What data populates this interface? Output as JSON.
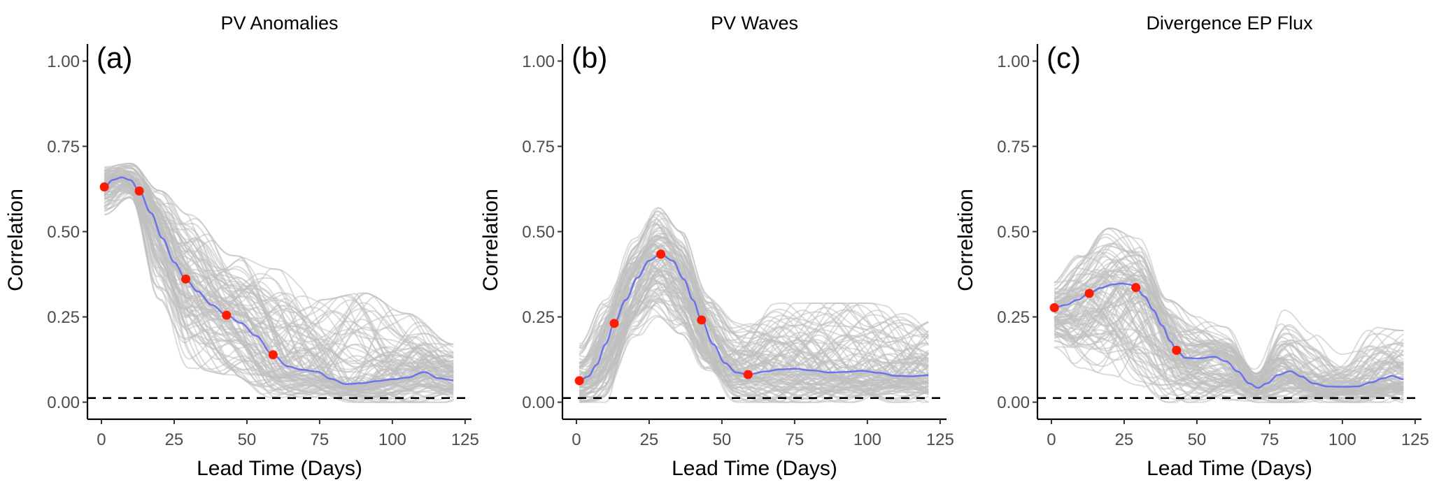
{
  "chart_data": [
    {
      "type": "line",
      "panel_label": "(a)",
      "title": "PV Anomalies",
      "xlabel": "Lead Time (Days)",
      "ylabel": "Correlation",
      "xlim": [
        -4.8,
        127.2
      ],
      "ylim": [
        -0.05,
        1.05
      ],
      "xticks": [
        0,
        25,
        50,
        75,
        100,
        125
      ],
      "xtick_labels": [
        "0",
        "25",
        "50",
        "75",
        "100",
        "125"
      ],
      "yticks": [
        0.0,
        0.25,
        0.5,
        0.75,
        1.0
      ],
      "ytick_labels": [
        "0.00",
        "0.25",
        "0.50",
        "0.75",
        "1.00"
      ],
      "grid": false,
      "reference_line": {
        "y": 0.012,
        "style": "dashed",
        "color": "#000000"
      },
      "ensemble": {
        "description": "individual member correlation curves (gray)",
        "count": 100,
        "color": "#bfbfbf",
        "spread_upper": {
          "x": [
            1,
            10,
            20,
            30,
            45,
            60,
            75,
            90,
            105,
            121
          ],
          "y": [
            0.69,
            0.7,
            0.62,
            0.55,
            0.43,
            0.39,
            0.3,
            0.32,
            0.26,
            0.17
          ]
        },
        "spread_lower": {
          "x": [
            1,
            10,
            20,
            30,
            45,
            60,
            75,
            90,
            105,
            121
          ],
          "y": [
            0.55,
            0.6,
            0.3,
            0.1,
            0.08,
            0.0,
            0.0,
            0.0,
            0.0,
            0.0
          ]
        }
      },
      "mean_series": {
        "name": "Mean correlation",
        "color": "#5a63f0",
        "x": [
          1,
          4,
          7,
          10,
          13,
          17,
          21,
          25,
          29,
          33,
          38,
          43,
          48,
          53,
          59,
          64,
          69,
          74,
          79,
          84,
          90,
          95,
          100,
          105,
          111,
          116,
          121
        ],
        "y": [
          0.631,
          0.652,
          0.659,
          0.651,
          0.619,
          0.555,
          0.48,
          0.41,
          0.361,
          0.325,
          0.285,
          0.255,
          0.232,
          0.195,
          0.139,
          0.105,
          0.095,
          0.09,
          0.068,
          0.053,
          0.056,
          0.062,
          0.067,
          0.072,
          0.088,
          0.07,
          0.064
        ]
      },
      "points": {
        "name": "Selected lead times",
        "color": "#ff1a00",
        "x": [
          1,
          13,
          29,
          43,
          59
        ],
        "y": [
          0.631,
          0.619,
          0.361,
          0.255,
          0.139
        ]
      }
    },
    {
      "type": "line",
      "panel_label": "(b)",
      "title": "PV Waves",
      "xlabel": "Lead Time (Days)",
      "ylabel": "Correlation",
      "xlim": [
        -4.8,
        127.2
      ],
      "ylim": [
        -0.05,
        1.05
      ],
      "xticks": [
        0,
        25,
        50,
        75,
        100,
        125
      ],
      "xtick_labels": [
        "0",
        "25",
        "50",
        "75",
        "100",
        "125"
      ],
      "yticks": [
        0.0,
        0.25,
        0.5,
        0.75,
        1.0
      ],
      "ytick_labels": [
        "0.00",
        "0.25",
        "0.50",
        "0.75",
        "1.00"
      ],
      "grid": false,
      "reference_line": {
        "y": 0.012,
        "style": "dashed",
        "color": "#000000"
      },
      "ensemble": {
        "description": "individual member correlation curves (gray)",
        "count": 100,
        "color": "#bfbfbf",
        "spread_upper": {
          "x": [
            1,
            10,
            20,
            28,
            36,
            45,
            55,
            70,
            85,
            100,
            121
          ],
          "y": [
            0.17,
            0.3,
            0.48,
            0.57,
            0.5,
            0.32,
            0.24,
            0.29,
            0.29,
            0.29,
            0.25
          ]
        },
        "spread_lower": {
          "x": [
            1,
            10,
            20,
            28,
            36,
            45,
            55,
            70,
            85,
            100,
            121
          ],
          "y": [
            0.0,
            0.0,
            0.18,
            0.25,
            0.2,
            0.08,
            0.0,
            0.0,
            0.0,
            0.0,
            0.0
          ]
        }
      },
      "mean_series": {
        "name": "Mean correlation",
        "color": "#5a63f0",
        "x": [
          1,
          4,
          7,
          10,
          13,
          17,
          21,
          25,
          29,
          33,
          37,
          40,
          43,
          47,
          51,
          55,
          59,
          65,
          70,
          75,
          81,
          87,
          93,
          98,
          104,
          110,
          115,
          121
        ],
        "y": [
          0.063,
          0.075,
          0.11,
          0.17,
          0.231,
          0.3,
          0.365,
          0.415,
          0.434,
          0.415,
          0.36,
          0.3,
          0.241,
          0.17,
          0.115,
          0.087,
          0.081,
          0.09,
          0.096,
          0.098,
          0.093,
          0.087,
          0.089,
          0.092,
          0.086,
          0.077,
          0.076,
          0.079
        ]
      },
      "points": {
        "name": "Selected lead times",
        "color": "#ff1a00",
        "x": [
          1,
          13,
          29,
          43,
          59
        ],
        "y": [
          0.063,
          0.231,
          0.434,
          0.241,
          0.081
        ]
      }
    },
    {
      "type": "line",
      "panel_label": "(c)",
      "title": "Divergence EP Flux",
      "xlabel": "Lead Time (Days)",
      "ylabel": "Correlation",
      "xlim": [
        -4.8,
        127.2
      ],
      "ylim": [
        -0.05,
        1.05
      ],
      "xticks": [
        0,
        25,
        50,
        75,
        100,
        125
      ],
      "xtick_labels": [
        "0",
        "25",
        "50",
        "75",
        "100",
        "125"
      ],
      "yticks": [
        0.0,
        0.25,
        0.5,
        0.75,
        1.0
      ],
      "ytick_labels": [
        "0.00",
        "0.25",
        "0.50",
        "0.75",
        "1.00"
      ],
      "grid": false,
      "reference_line": {
        "y": 0.012,
        "style": "dashed",
        "color": "#000000"
      },
      "ensemble": {
        "description": "individual member correlation curves (gray)",
        "count": 100,
        "color": "#bfbfbf",
        "spread_upper": {
          "x": [
            1,
            10,
            20,
            30,
            40,
            50,
            60,
            70,
            80,
            90,
            100,
            110,
            121
          ],
          "y": [
            0.38,
            0.44,
            0.51,
            0.48,
            0.3,
            0.25,
            0.22,
            0.1,
            0.27,
            0.2,
            0.14,
            0.22,
            0.21
          ]
        },
        "spread_lower": {
          "x": [
            1,
            10,
            20,
            30,
            40,
            50,
            60,
            70,
            80,
            90,
            100,
            110,
            121
          ],
          "y": [
            0.16,
            0.1,
            0.08,
            0.05,
            0.0,
            0.0,
            0.0,
            0.0,
            0.0,
            0.0,
            0.0,
            0.0,
            0.0
          ]
        }
      },
      "mean_series": {
        "name": "Mean correlation",
        "color": "#5a63f0",
        "x": [
          1,
          5,
          9,
          13,
          17,
          21,
          24,
          27,
          29,
          32,
          35,
          38,
          41,
          43,
          46,
          50,
          56,
          60,
          64,
          68,
          71,
          74,
          78,
          82,
          86,
          90,
          95,
          100,
          105,
          110,
          114,
          117,
          121
        ],
        "y": [
          0.277,
          0.285,
          0.3,
          0.319,
          0.335,
          0.345,
          0.348,
          0.345,
          0.336,
          0.31,
          0.27,
          0.225,
          0.178,
          0.152,
          0.13,
          0.128,
          0.133,
          0.12,
          0.09,
          0.055,
          0.042,
          0.055,
          0.08,
          0.091,
          0.075,
          0.055,
          0.046,
          0.045,
          0.046,
          0.058,
          0.07,
          0.077,
          0.067
        ]
      },
      "points": {
        "name": "Selected lead times",
        "color": "#ff1a00",
        "x": [
          1,
          13,
          29,
          43
        ],
        "y": [
          0.277,
          0.319,
          0.336,
          0.152
        ]
      }
    }
  ]
}
